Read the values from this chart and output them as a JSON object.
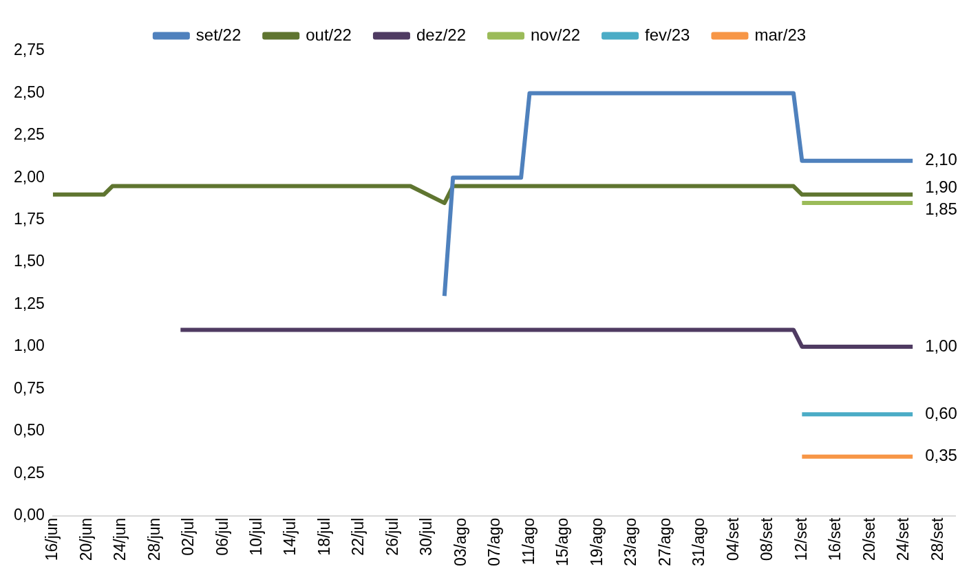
{
  "chart_data": {
    "type": "line",
    "legend": "top",
    "grid": false,
    "xlim": [
      "--06-16",
      "--09-30"
    ],
    "xticks": [
      {
        "value": "--06-16",
        "label": "16/jun"
      },
      {
        "value": "--06-20",
        "label": "20/jun"
      },
      {
        "value": "--06-24",
        "label": "24/jun"
      },
      {
        "value": "--06-28",
        "label": "28/jun"
      },
      {
        "value": "--07-02",
        "label": "02/jul"
      },
      {
        "value": "--07-06",
        "label": "06/jul"
      },
      {
        "value": "--07-10",
        "label": "10/jul"
      },
      {
        "value": "--07-14",
        "label": "14/jul"
      },
      {
        "value": "--07-18",
        "label": "18/jul"
      },
      {
        "value": "--07-22",
        "label": "22/jul"
      },
      {
        "value": "--07-26",
        "label": "26/jul"
      },
      {
        "value": "--07-30",
        "label": "30/jul"
      },
      {
        "value": "--08-03",
        "label": "03/ago"
      },
      {
        "value": "--08-07",
        "label": "07/ago"
      },
      {
        "value": "--08-11",
        "label": "11/ago"
      },
      {
        "value": "--08-15",
        "label": "15/ago"
      },
      {
        "value": "--08-19",
        "label": "19/ago"
      },
      {
        "value": "--08-23",
        "label": "23/ago"
      },
      {
        "value": "--08-27",
        "label": "27/ago"
      },
      {
        "value": "--08-31",
        "label": "31/ago"
      },
      {
        "value": "--09-04",
        "label": "04/set"
      },
      {
        "value": "--09-08",
        "label": "08/set"
      },
      {
        "value": "--09-12",
        "label": "12/set"
      },
      {
        "value": "--09-16",
        "label": "16/set"
      },
      {
        "value": "--09-20",
        "label": "20/set"
      },
      {
        "value": "--09-24",
        "label": "24/set"
      },
      {
        "value": "--09-28",
        "label": "28/set"
      }
    ],
    "ylim": [
      0,
      2.75
    ],
    "yticks": [
      {
        "value": 0,
        "label": "0,00"
      },
      {
        "value": 0.25,
        "label": "0,25"
      },
      {
        "value": 0.5,
        "label": "0,50"
      },
      {
        "value": 0.75,
        "label": "0,75"
      },
      {
        "value": 1,
        "label": "1,00"
      },
      {
        "value": 1.25,
        "label": "1,25"
      },
      {
        "value": 1.5,
        "label": "1,50"
      },
      {
        "value": 1.75,
        "label": "1,75"
      },
      {
        "value": 2,
        "label": "2,00"
      },
      {
        "value": 2.25,
        "label": "2,25"
      },
      {
        "value": 2.5,
        "label": "2,50"
      },
      {
        "value": 2.75,
        "label": "2,75"
      }
    ],
    "series": [
      {
        "name": "set/22",
        "color": "#4f81bd",
        "x": [
          "--08-01",
          "--08-02",
          "--08-10",
          "--08-11",
          "--09-11",
          "--09-12",
          "--09-25"
        ],
        "values": [
          1.3,
          2.0,
          2.0,
          2.5,
          2.5,
          2.1,
          2.1
        ],
        "value_labels": [
          null,
          null,
          null,
          null,
          null,
          null,
          "2,10"
        ]
      },
      {
        "name": "out/22",
        "color": "#5f7530",
        "x": [
          "--06-16",
          "--06-22",
          "--06-23",
          "--07-28",
          "--08-01",
          "--08-02",
          "--09-11",
          "--09-12",
          "--09-25"
        ],
        "values": [
          1.9,
          1.9,
          1.95,
          1.95,
          1.85,
          1.95,
          1.95,
          1.9,
          1.9
        ],
        "value_labels": [
          null,
          null,
          null,
          null,
          null,
          null,
          null,
          null,
          "1,90"
        ]
      },
      {
        "name": "dez/22",
        "color": "#4f3b62",
        "x": [
          "--07-01",
          "--09-11",
          "--09-12",
          "--09-25"
        ],
        "values": [
          1.1,
          1.1,
          1.0,
          1.0
        ],
        "value_labels": [
          null,
          null,
          null,
          "1,00"
        ]
      },
      {
        "name": "nov/22",
        "color": "#9bbb59",
        "x": [
          "--09-12",
          "--09-25"
        ],
        "values": [
          1.85,
          1.85
        ],
        "value_labels": [
          null,
          "1,85"
        ]
      },
      {
        "name": "fev/23",
        "color": "#4bacc6",
        "x": [
          "--09-12",
          "--09-25"
        ],
        "values": [
          0.6,
          0.6
        ],
        "value_labels": [
          null,
          "0,60"
        ]
      },
      {
        "name": "mar/23",
        "color": "#f79646",
        "x": [
          "--09-12",
          "--09-25"
        ],
        "values": [
          0.35,
          0.35
        ],
        "value_labels": [
          null,
          "0,35"
        ]
      }
    ]
  }
}
